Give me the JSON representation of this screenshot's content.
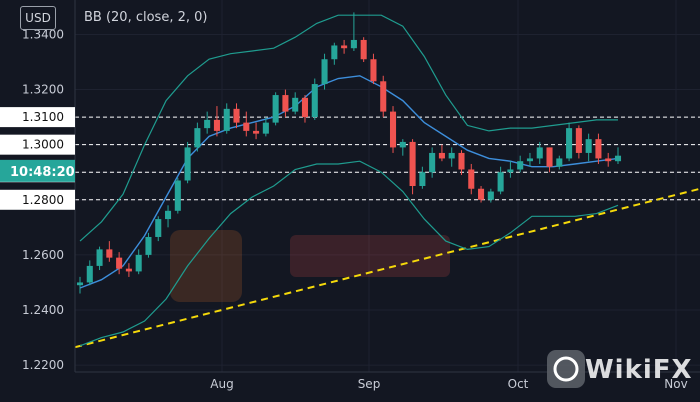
{
  "currency": "USD",
  "indicator": "BB (20, close, 2, 0)",
  "watermark": "WikiFX",
  "current_time": "10:48:20",
  "colors": {
    "background": "#131722",
    "bullish": "#26a69a",
    "bearish": "#ef5350",
    "bb_band": "#1f9c8f",
    "bb_basis": "#3d8edb",
    "trendline": "#f5d90a",
    "level_line": "#ffffff",
    "time_badge": "#26a69a"
  },
  "chart_data": {
    "type": "candlestick",
    "x_ticks": [
      "Aug",
      "Sep",
      "Oct",
      "Nov"
    ],
    "ylim": [
      1.2175,
      1.3525
    ],
    "y_ticks": [
      "1.2200",
      "1.2400",
      "1.2600",
      "1.2800",
      "1.2900",
      "1.3000",
      "1.3100",
      "1.3200",
      "1.3400"
    ],
    "highlighted_levels": [
      {
        "label": "1.3100",
        "value": 1.31
      },
      {
        "label": "1.3000",
        "value": 1.3
      },
      {
        "label": "1.2900",
        "value": 1.29
      },
      {
        "label": "1.2800",
        "value": 1.28
      }
    ],
    "current_price": 1.2905,
    "bb_upper": [
      1.265,
      1.272,
      1.282,
      1.3,
      1.316,
      1.325,
      1.331,
      1.333,
      1.334,
      1.335,
      1.339,
      1.344,
      1.347,
      1.347,
      1.347,
      1.343,
      1.332,
      1.318,
      1.307,
      1.305,
      1.306,
      1.306,
      1.307,
      1.308,
      1.309,
      1.309
    ],
    "bb_basis": [
      1.248,
      1.251,
      1.256,
      1.267,
      1.281,
      1.295,
      1.303,
      1.306,
      1.308,
      1.31,
      1.314,
      1.321,
      1.324,
      1.325,
      1.321,
      1.316,
      1.308,
      1.303,
      1.298,
      1.295,
      1.294,
      1.292,
      1.292,
      1.293,
      1.294,
      1.295
    ],
    "bb_lower": [
      1.227,
      1.23,
      1.232,
      1.236,
      1.244,
      1.256,
      1.266,
      1.275,
      1.281,
      1.285,
      1.291,
      1.293,
      1.293,
      1.294,
      1.29,
      1.283,
      1.273,
      1.265,
      1.262,
      1.263,
      1.268,
      1.274,
      1.274,
      1.274,
      1.275,
      1.278
    ],
    "trendline": [
      1.2265,
      1.284
    ],
    "candles": [
      [
        1.249,
        1.252,
        1.246,
        1.25
      ],
      [
        1.25,
        1.258,
        1.249,
        1.256
      ],
      [
        1.256,
        1.263,
        1.2545,
        1.262
      ],
      [
        1.262,
        1.265,
        1.2575,
        1.259
      ],
      [
        1.259,
        1.261,
        1.253,
        1.255
      ],
      [
        1.255,
        1.257,
        1.252,
        1.254
      ],
      [
        1.254,
        1.262,
        1.253,
        1.26
      ],
      [
        1.26,
        1.268,
        1.259,
        1.2665
      ],
      [
        1.2665,
        1.274,
        1.265,
        1.273
      ],
      [
        1.273,
        1.278,
        1.27,
        1.276
      ],
      [
        1.276,
        1.288,
        1.275,
        1.287
      ],
      [
        1.287,
        1.301,
        1.286,
        1.299
      ],
      [
        1.299,
        1.308,
        1.2975,
        1.306
      ],
      [
        1.306,
        1.312,
        1.304,
        1.309
      ],
      [
        1.309,
        1.314,
        1.303,
        1.305
      ],
      [
        1.305,
        1.315,
        1.304,
        1.313
      ],
      [
        1.313,
        1.315,
        1.306,
        1.308
      ],
      [
        1.308,
        1.312,
        1.303,
        1.305
      ],
      [
        1.305,
        1.308,
        1.302,
        1.304
      ],
      [
        1.304,
        1.31,
        1.303,
        1.308
      ],
      [
        1.308,
        1.319,
        1.307,
        1.318
      ],
      [
        1.318,
        1.32,
        1.31,
        1.312
      ],
      [
        1.312,
        1.319,
        1.311,
        1.317
      ],
      [
        1.317,
        1.318,
        1.308,
        1.31
      ],
      [
        1.31,
        1.324,
        1.309,
        1.322
      ],
      [
        1.322,
        1.333,
        1.32,
        1.331
      ],
      [
        1.331,
        1.337,
        1.329,
        1.336
      ],
      [
        1.336,
        1.338,
        1.333,
        1.335
      ],
      [
        1.335,
        1.348,
        1.334,
        1.338
      ],
      [
        1.338,
        1.339,
        1.33,
        1.331
      ],
      [
        1.331,
        1.333,
        1.322,
        1.323
      ],
      [
        1.323,
        1.325,
        1.31,
        1.312
      ],
      [
        1.312,
        1.314,
        1.297,
        1.299
      ],
      [
        1.299,
        1.302,
        1.296,
        1.301
      ],
      [
        1.301,
        1.302,
        1.282,
        1.285
      ],
      [
        1.285,
        1.292,
        1.284,
        1.29
      ],
      [
        1.29,
        1.299,
        1.288,
        1.297
      ],
      [
        1.297,
        1.3,
        1.294,
        1.295
      ],
      [
        1.295,
        1.299,
        1.292,
        1.297
      ],
      [
        1.297,
        1.298,
        1.289,
        1.291
      ],
      [
        1.291,
        1.293,
        1.282,
        1.284
      ],
      [
        1.284,
        1.285,
        1.279,
        1.28
      ],
      [
        1.28,
        1.284,
        1.279,
        1.283
      ],
      [
        1.283,
        1.292,
        1.282,
        1.29
      ],
      [
        1.29,
        1.294,
        1.288,
        1.291
      ],
      [
        1.291,
        1.296,
        1.29,
        1.294
      ],
      [
        1.294,
        1.297,
        1.292,
        1.295
      ],
      [
        1.295,
        1.301,
        1.293,
        1.299
      ],
      [
        1.299,
        1.299,
        1.29,
        1.292
      ],
      [
        1.292,
        1.296,
        1.291,
        1.295
      ],
      [
        1.295,
        1.308,
        1.294,
        1.306
      ],
      [
        1.306,
        1.307,
        1.295,
        1.297
      ],
      [
        1.297,
        1.304,
        1.294,
        1.302
      ],
      [
        1.302,
        1.304,
        1.293,
        1.295
      ],
      [
        1.295,
        1.297,
        1.292,
        1.294
      ],
      [
        1.294,
        1.299,
        1.293,
        1.296
      ]
    ]
  }
}
